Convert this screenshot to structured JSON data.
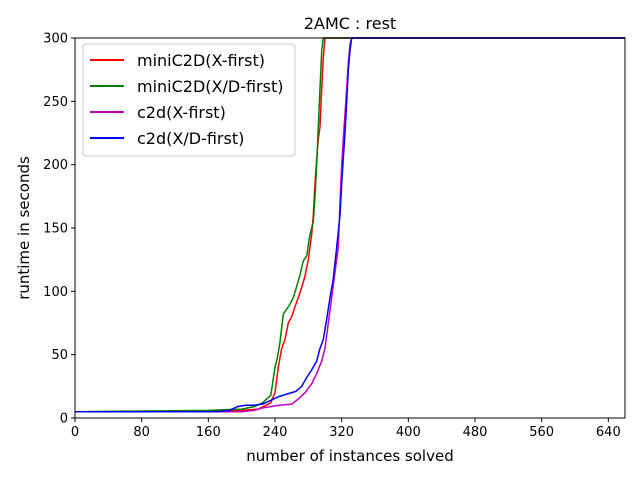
{
  "chart_data": {
    "type": "line",
    "title": "2AMC : rest",
    "xlabel": "number of instances solved",
    "ylabel": "runtime in seconds",
    "xlim": [
      0,
      660
    ],
    "ylim": [
      0,
      300
    ],
    "xticks": [
      0,
      80,
      160,
      240,
      320,
      400,
      480,
      560,
      640
    ],
    "yticks": [
      0,
      50,
      100,
      150,
      200,
      250,
      300
    ],
    "legend_position": "upper-left",
    "grid": false,
    "series": [
      {
        "name": "miniC2D(X-first)",
        "color": "#ff0000",
        "x": [
          0,
          150,
          200,
          220,
          235,
          240,
          244,
          248,
          252,
          256,
          260,
          264,
          268,
          272,
          276,
          280,
          284,
          286,
          288,
          290,
          292,
          294,
          296,
          298,
          300,
          302,
          320,
          660
        ],
        "y": [
          5,
          5,
          6,
          7,
          12,
          20,
          40,
          55,
          62,
          75,
          80,
          88,
          95,
          103,
          112,
          125,
          145,
          160,
          185,
          205,
          220,
          230,
          260,
          285,
          300,
          300,
          300,
          300
        ]
      },
      {
        "name": "miniC2D(X/D-first)",
        "color": "#008000",
        "x": [
          0,
          160,
          200,
          215,
          225,
          235,
          240,
          243,
          246,
          250,
          254,
          258,
          262,
          266,
          270,
          274,
          278,
          282,
          286,
          288,
          290,
          292,
          294,
          296,
          298,
          300,
          320,
          660
        ],
        "y": [
          5,
          6,
          7,
          9,
          12,
          18,
          40,
          48,
          60,
          82,
          86,
          90,
          95,
          104,
          113,
          124,
          128,
          145,
          155,
          175,
          200,
          230,
          260,
          290,
          300,
          300,
          300,
          300
        ]
      },
      {
        "name": "c2d(X-first)",
        "color": "#bf00bf",
        "x": [
          0,
          200,
          215,
          225,
          235,
          245,
          260,
          268,
          276,
          284,
          290,
          296,
          300,
          304,
          308,
          312,
          316,
          318,
          320,
          322,
          324,
          326,
          328,
          330,
          332,
          660
        ],
        "y": [
          5,
          5,
          6,
          8,
          9,
          10,
          11,
          15,
          20,
          27,
          35,
          45,
          55,
          75,
          95,
          115,
          135,
          170,
          200,
          220,
          240,
          260,
          280,
          295,
          300,
          300
        ]
      },
      {
        "name": "c2d(X/D-first)",
        "color": "#0000ff",
        "x": [
          0,
          170,
          185,
          195,
          205,
          215,
          225,
          235,
          245,
          255,
          265,
          272,
          278,
          284,
          290,
          294,
          298,
          302,
          306,
          310,
          314,
          318,
          320,
          322,
          324,
          326,
          328,
          330,
          332,
          660
        ],
        "y": [
          5,
          5,
          6,
          9,
          10,
          10,
          11,
          14,
          17,
          19,
          21,
          25,
          32,
          38,
          45,
          55,
          62,
          78,
          95,
          110,
          135,
          160,
          185,
          205,
          225,
          250,
          275,
          290,
          300,
          300
        ]
      }
    ]
  }
}
